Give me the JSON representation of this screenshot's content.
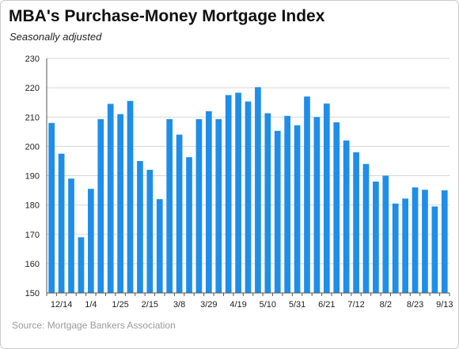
{
  "title": "MBA's Purchase-Money Mortgage Index",
  "subtitle": "Seasonally adjusted",
  "source": "Source: Mortgage Bankers Association",
  "colors": {
    "bar": "#1f8ee8",
    "grid": "#d6d6d6",
    "axis": "#555555"
  },
  "chart_data": {
    "type": "bar",
    "title": "MBA's Purchase-Money Mortgage Index",
    "subtitle": "Seasonally adjusted",
    "xlabel": "",
    "ylabel": "",
    "ylim": [
      150,
      230
    ],
    "yticks": [
      150,
      160,
      170,
      180,
      190,
      200,
      210,
      220,
      230
    ],
    "grid": true,
    "x_tick_labels": [
      {
        "index": 1,
        "label": "12/14"
      },
      {
        "index": 4,
        "label": "1/4"
      },
      {
        "index": 7,
        "label": "1/25"
      },
      {
        "index": 10,
        "label": "2/15"
      },
      {
        "index": 13,
        "label": "3/8"
      },
      {
        "index": 16,
        "label": "3/29"
      },
      {
        "index": 19,
        "label": "4/19"
      },
      {
        "index": 22,
        "label": "5/10"
      },
      {
        "index": 25,
        "label": "5/31"
      },
      {
        "index": 28,
        "label": "6/21"
      },
      {
        "index": 31,
        "label": "7/12"
      },
      {
        "index": 34,
        "label": "8/2"
      },
      {
        "index": 37,
        "label": "8/23"
      },
      {
        "index": 40,
        "label": "9/13"
      }
    ],
    "values": [
      208,
      197.5,
      189,
      169,
      185.5,
      209.3,
      214.5,
      211,
      215.5,
      195,
      192,
      182,
      209.3,
      204,
      196.3,
      209.3,
      212,
      209.3,
      217.5,
      218.3,
      215.3,
      220.2,
      211.3,
      205.3,
      210.4,
      207.2,
      217,
      210,
      214.6,
      208.2,
      202,
      198,
      194,
      188,
      190,
      180.5,
      182.2,
      186,
      185.2,
      179.5,
      185
    ]
  }
}
